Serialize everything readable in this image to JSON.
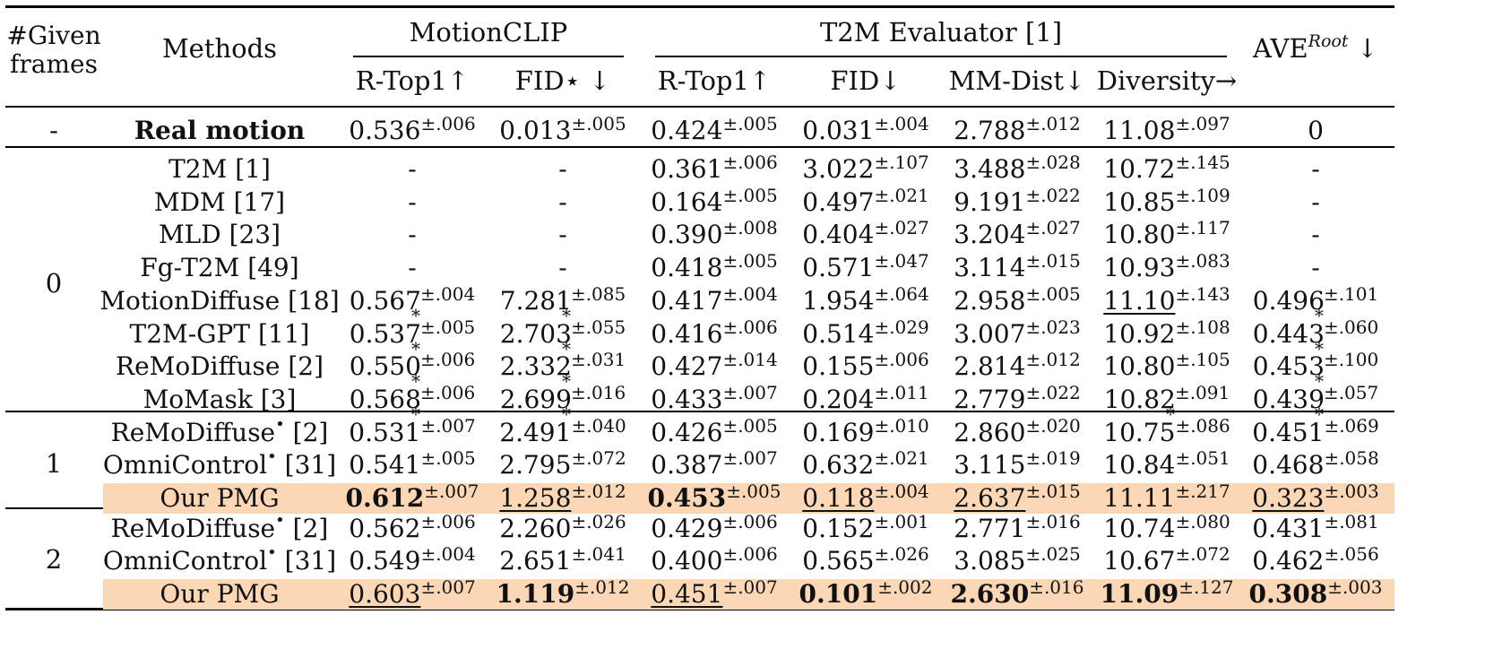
{
  "header": {
    "given_frames": "#Given frames",
    "methods": "Methods",
    "group_motionclip": "MotionCLIP",
    "group_t2m": "T2M Evaluator [1]",
    "ave_root": "AVE",
    "ave_root_sup": "Root",
    "ave_root_arrow": "↓",
    "cols": [
      "R-Top1↑",
      "FID⋆ ↓",
      "R-Top1↑",
      "FID↓",
      "MM-Dist↓",
      "Diversity→"
    ]
  },
  "groups": [
    {
      "label": "-",
      "rows": [
        {
          "method": "Real motion",
          "method_bold": true,
          "method_sup": "",
          "method_ref": "",
          "highlight": false,
          "cells": [
            {
              "v": "0.536",
              "pm": ".006"
            },
            {
              "v": "0.013",
              "pm": ".005"
            },
            {
              "v": "0.424",
              "pm": ".005"
            },
            {
              "v": "0.031",
              "pm": ".004"
            },
            {
              "v": "2.788",
              "pm": ".012"
            },
            {
              "v": "11.08",
              "pm": ".097"
            },
            {
              "v": "0",
              "pm": ""
            }
          ]
        }
      ]
    },
    {
      "label": "0",
      "rows": [
        {
          "method": "T2M",
          "method_ref": "[1]",
          "cells": [
            {
              "v": "-"
            },
            {
              "v": "-"
            },
            {
              "v": "0.361",
              "pm": ".006"
            },
            {
              "v": "3.022",
              "pm": ".107"
            },
            {
              "v": "3.488",
              "pm": ".028"
            },
            {
              "v": "10.72",
              "pm": ".145"
            },
            {
              "v": "-"
            }
          ]
        },
        {
          "method": "MDM",
          "method_ref": "[17]",
          "cells": [
            {
              "v": "-"
            },
            {
              "v": "-"
            },
            {
              "v": "0.164",
              "pm": ".005"
            },
            {
              "v": "0.497",
              "pm": ".021"
            },
            {
              "v": "9.191",
              "pm": ".022"
            },
            {
              "v": "10.85",
              "pm": ".109"
            },
            {
              "v": "-"
            }
          ]
        },
        {
          "method": "MLD",
          "method_ref": "[23]",
          "cells": [
            {
              "v": "-"
            },
            {
              "v": "-"
            },
            {
              "v": "0.390",
              "pm": ".008"
            },
            {
              "v": "0.404",
              "pm": ".027"
            },
            {
              "v": "3.204",
              "pm": ".027"
            },
            {
              "v": "10.80",
              "pm": ".117"
            },
            {
              "v": "-"
            }
          ]
        },
        {
          "method": "Fg-T2M",
          "method_ref": "[49]",
          "cells": [
            {
              "v": "-"
            },
            {
              "v": "-"
            },
            {
              "v": "0.418",
              "pm": ".005"
            },
            {
              "v": "0.571",
              "pm": ".047"
            },
            {
              "v": "3.114",
              "pm": ".015"
            },
            {
              "v": "10.93",
              "pm": ".083"
            },
            {
              "v": "-"
            }
          ]
        },
        {
          "method": "MotionDiffuse",
          "method_ref": "[18]",
          "cells": [
            {
              "v": "0.567",
              "pm": ".004",
              "star": true
            },
            {
              "v": "7.281",
              "pm": ".085",
              "star": true
            },
            {
              "v": "0.417",
              "pm": ".004"
            },
            {
              "v": "1.954",
              "pm": ".064"
            },
            {
              "v": "2.958",
              "pm": ".005"
            },
            {
              "v": "11.10",
              "pm": ".143",
              "u": true
            },
            {
              "v": "0.496",
              "pm": ".101",
              "star": true
            }
          ]
        },
        {
          "method": "T2M-GPT",
          "method_ref": "[11]",
          "cells": [
            {
              "v": "0.537",
              "pm": ".005",
              "star": true
            },
            {
              "v": "2.703",
              "pm": ".055",
              "star": true
            },
            {
              "v": "0.416",
              "pm": ".006"
            },
            {
              "v": "0.514",
              "pm": ".029"
            },
            {
              "v": "3.007",
              "pm": ".023"
            },
            {
              "v": "10.92",
              "pm": ".108"
            },
            {
              "v": "0.443",
              "pm": ".060",
              "star": true
            }
          ]
        },
        {
          "method": "ReMoDiffuse",
          "method_ref": "[2]",
          "cells": [
            {
              "v": "0.550",
              "pm": ".006",
              "star": true
            },
            {
              "v": "2.332",
              "pm": ".031",
              "star": true
            },
            {
              "v": "0.427",
              "pm": ".014"
            },
            {
              "v": "0.155",
              "pm": ".006"
            },
            {
              "v": "2.814",
              "pm": ".012"
            },
            {
              "v": "10.80",
              "pm": ".105"
            },
            {
              "v": "0.453",
              "pm": ".100",
              "star": true
            }
          ]
        },
        {
          "method": "MoMask",
          "method_ref": "[3]",
          "cells": [
            {
              "v": "0.568",
              "pm": ".006",
              "star": true
            },
            {
              "v": "2.699",
              "pm": ".016",
              "star": true
            },
            {
              "v": "0.433",
              "pm": ".007"
            },
            {
              "v": "0.204",
              "pm": ".011"
            },
            {
              "v": "2.779",
              "pm": ".022"
            },
            {
              "v": "10.82",
              "pm": ".091",
              "star": true
            },
            {
              "v": "0.439",
              "pm": ".057",
              "star": true
            }
          ]
        }
      ]
    },
    {
      "label": "1",
      "rows": [
        {
          "method": "ReMoDiffuse",
          "method_sup": "•",
          "method_ref": "[2]",
          "cells": [
            {
              "v": "0.531",
              "pm": ".007"
            },
            {
              "v": "2.491",
              "pm": ".040"
            },
            {
              "v": "0.426",
              "pm": ".005"
            },
            {
              "v": "0.169",
              "pm": ".010"
            },
            {
              "v": "2.860",
              "pm": ".020"
            },
            {
              "v": "10.75",
              "pm": ".086"
            },
            {
              "v": "0.451",
              "pm": ".069"
            }
          ]
        },
        {
          "method": "OmniControl",
          "method_sup": "•",
          "method_ref": "[31]",
          "cells": [
            {
              "v": "0.541",
              "pm": ".005"
            },
            {
              "v": "2.795",
              "pm": ".072"
            },
            {
              "v": "0.387",
              "pm": ".007"
            },
            {
              "v": "0.632",
              "pm": ".021"
            },
            {
              "v": "3.115",
              "pm": ".019"
            },
            {
              "v": "10.84",
              "pm": ".051"
            },
            {
              "v": "0.468",
              "pm": ".058"
            }
          ]
        },
        {
          "method": "Our PMG",
          "method_ref": "",
          "highlight": true,
          "cells": [
            {
              "v": "0.612",
              "pm": ".007",
              "b": true
            },
            {
              "v": "1.258",
              "pm": ".012",
              "u": true
            },
            {
              "v": "0.453",
              "pm": ".005",
              "b": true
            },
            {
              "v": "0.118",
              "pm": ".004",
              "u": true
            },
            {
              "v": "2.637",
              "pm": ".015",
              "u": true
            },
            {
              "v": "11.11",
              "pm": ".217"
            },
            {
              "v": "0.323",
              "pm": ".003",
              "u": true
            }
          ]
        }
      ]
    },
    {
      "label": "2",
      "rows": [
        {
          "method": "ReMoDiffuse",
          "method_sup": "•",
          "method_ref": "[2]",
          "cells": [
            {
              "v": "0.562",
              "pm": ".006"
            },
            {
              "v": "2.260",
              "pm": ".026"
            },
            {
              "v": "0.429",
              "pm": ".006"
            },
            {
              "v": "0.152",
              "pm": ".001"
            },
            {
              "v": "2.771",
              "pm": ".016"
            },
            {
              "v": "10.74",
              "pm": ".080"
            },
            {
              "v": "0.431",
              "pm": ".081"
            }
          ]
        },
        {
          "method": "OmniControl",
          "method_sup": "•",
          "method_ref": "[31]",
          "cells": [
            {
              "v": "0.549",
              "pm": ".004"
            },
            {
              "v": "2.651",
              "pm": ".041"
            },
            {
              "v": "0.400",
              "pm": ".006"
            },
            {
              "v": "0.565",
              "pm": ".026"
            },
            {
              "v": "3.085",
              "pm": ".025"
            },
            {
              "v": "10.67",
              "pm": ".072"
            },
            {
              "v": "0.462",
              "pm": ".056"
            }
          ]
        },
        {
          "method": "Our PMG",
          "method_ref": "",
          "highlight": true,
          "cells": [
            {
              "v": "0.603",
              "pm": ".007",
              "u": true
            },
            {
              "v": "1.119",
              "pm": ".012",
              "b": true
            },
            {
              "v": "0.451",
              "pm": ".007",
              "u": true
            },
            {
              "v": "0.101",
              "pm": ".002",
              "b": true
            },
            {
              "v": "2.630",
              "pm": ".016",
              "b": true
            },
            {
              "v": "11.09",
              "pm": ".127",
              "b": true
            },
            {
              "v": "0.308",
              "pm": ".003",
              "b": true
            }
          ]
        }
      ]
    }
  ],
  "colors": {
    "highlight": "#fcd7b5",
    "rule": "#000000"
  }
}
